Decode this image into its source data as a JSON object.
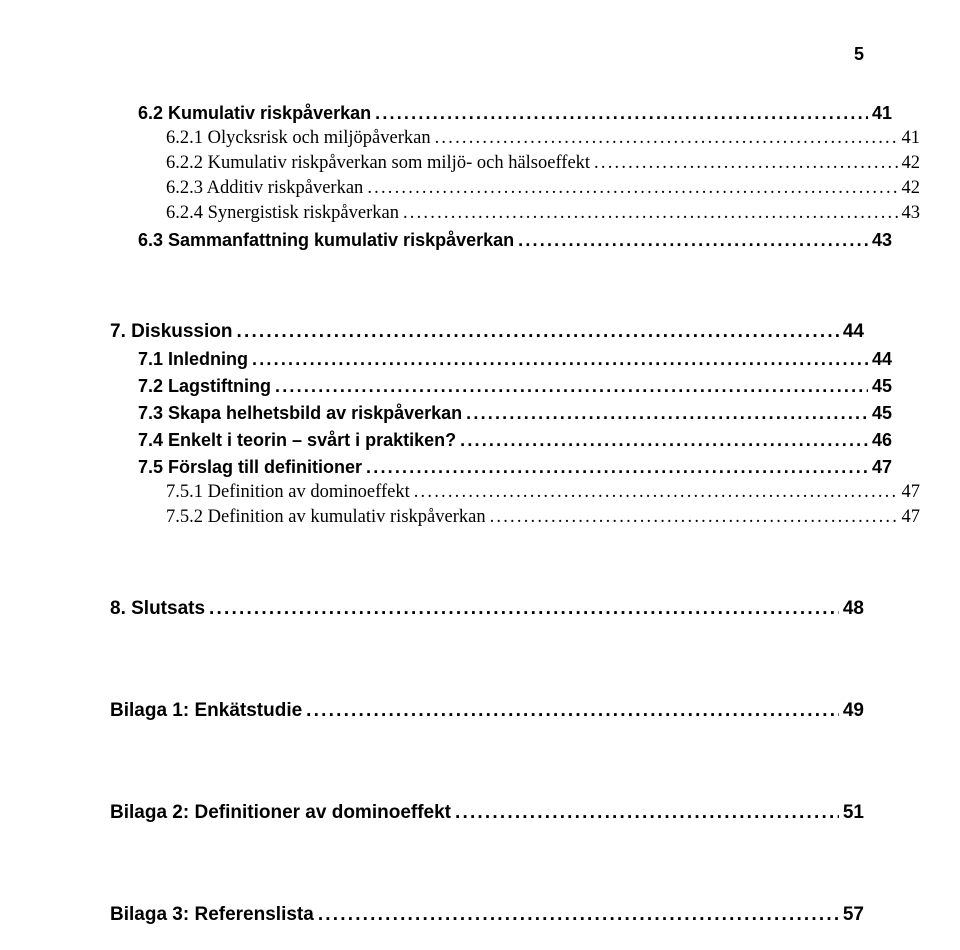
{
  "colors": {
    "background": "#ffffff",
    "text": "#000000"
  },
  "page_number": "5",
  "leader_char": ".",
  "toc": [
    {
      "level": 2,
      "label": "6.2 Kumulativ riskpåverkan",
      "page": "41",
      "spacer_before": 0
    },
    {
      "level": 3,
      "label": "6.2.1 Olycksrisk och miljöpåverkan",
      "page": "41",
      "spacer_before": 0
    },
    {
      "level": 3,
      "label": "6.2.2 Kumulativ riskpåverkan som miljö- och hälsoeffekt",
      "page": "42",
      "spacer_before": 0
    },
    {
      "level": 3,
      "label": "6.2.3 Additiv riskpåverkan",
      "page": "42",
      "spacer_before": 0
    },
    {
      "level": 3,
      "label": "6.2.4 Synergistisk riskpåverkan",
      "page": "43",
      "spacer_before": 0
    },
    {
      "level": 2,
      "label": "6.3 Sammanfattning kumulativ riskpåverkan",
      "page": "43",
      "spacer_before": 0
    },
    {
      "level": 1,
      "label": "7. Diskussion",
      "page": "44",
      "spacer_before": 34
    },
    {
      "level": 2,
      "label": "7.1 Inledning",
      "page": "44",
      "spacer_before": 0
    },
    {
      "level": 2,
      "label": "7.2 Lagstiftning",
      "page": "45",
      "spacer_before": 0
    },
    {
      "level": 2,
      "label": "7.3 Skapa helhetsbild av riskpåverkan",
      "page": "45",
      "spacer_before": 0
    },
    {
      "level": 2,
      "label": "7.4 Enkelt i teorin – svårt i praktiken?",
      "page": "46",
      "spacer_before": 0
    },
    {
      "level": 2,
      "label": "7.5 Förslag till definitioner",
      "page": "47",
      "spacer_before": 0
    },
    {
      "level": 3,
      "label": "7.5.1 Definition av dominoeffekt",
      "page": "47",
      "spacer_before": 0
    },
    {
      "level": 3,
      "label": "7.5.2 Definition av kumulativ riskpåverkan",
      "page": "47",
      "spacer_before": 0
    },
    {
      "level": 1,
      "label": "8. Slutsats",
      "page": "48",
      "spacer_before": 34
    },
    {
      "level": 1,
      "label": "Bilaga 1: Enkätstudie",
      "page": "49",
      "spacer_before": 44
    },
    {
      "level": 1,
      "label": "Bilaga 2: Definitioner av dominoeffekt",
      "page": "51",
      "spacer_before": 44
    },
    {
      "level": 1,
      "label": "Bilaga 3: Referenslista",
      "page": "57",
      "spacer_before": 44
    }
  ]
}
